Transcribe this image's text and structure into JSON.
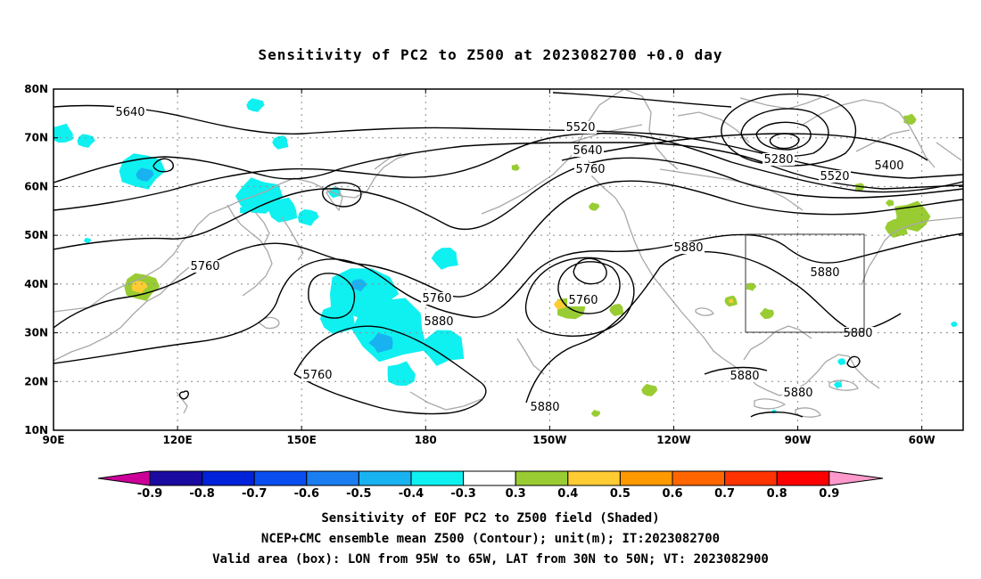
{
  "title": "Sensitivity of PC2 to Z500 at 2023082700 +0.0 day",
  "map": {
    "lat_labels": [
      "80N",
      "70N",
      "60N",
      "50N",
      "40N",
      "30N",
      "20N",
      "10N"
    ],
    "lon_labels": [
      "90E",
      "120E",
      "150E",
      "180",
      "150W",
      "120W",
      "90W",
      "60W"
    ],
    "lat_range": [
      10,
      80
    ],
    "lon_range_east": [
      90,
      310
    ],
    "valid_box": {
      "lon_w": -95,
      "lon_e": -65,
      "lat_s": 30,
      "lat_n": 50
    },
    "contour_labels": [
      {
        "text": "5640"
      },
      {
        "text": "5520"
      },
      {
        "text": "5640"
      },
      {
        "text": "5760"
      },
      {
        "text": "5280"
      },
      {
        "text": "5400"
      },
      {
        "text": "5520"
      },
      {
        "text": "5760"
      },
      {
        "text": "5760"
      },
      {
        "text": "5880"
      },
      {
        "text": "5760"
      },
      {
        "text": "5880"
      },
      {
        "text": "5760"
      },
      {
        "text": "5880"
      },
      {
        "text": "5880"
      },
      {
        "text": "5880"
      },
      {
        "text": "5880"
      },
      {
        "text": "5880"
      }
    ]
  },
  "colorbar": {
    "labels": [
      "-0.9",
      "-0.8",
      "-0.7",
      "-0.6",
      "-0.5",
      "-0.4",
      "-0.3",
      "0.3",
      "0.4",
      "0.5",
      "0.6",
      "0.7",
      "0.8",
      "0.9"
    ],
    "colors": [
      "#1a0aa0",
      "#0022d8",
      "#0a4ef0",
      "#1a7ef0",
      "#19b2f0",
      "#0ff0f0",
      "#ffffff",
      "#99cc33",
      "#ffcc33",
      "#ff9900",
      "#ff6600",
      "#ff3300",
      "#ff0000"
    ],
    "min_color": "#cc0099",
    "max_color": "#ff99cc",
    "seed_text": "PC2 Z500 2023082700"
  },
  "footer": {
    "line1": "Sensitivity of EOF PC2 to Z500 field (Shaded)",
    "line2": "NCEP+CMC ensemble mean Z500 (Contour); unit(m); IT:2023082700",
    "line3": "Valid area (box): LON from 95W to 65W, LAT from 30N to 50N; VT: 2023082900"
  }
}
